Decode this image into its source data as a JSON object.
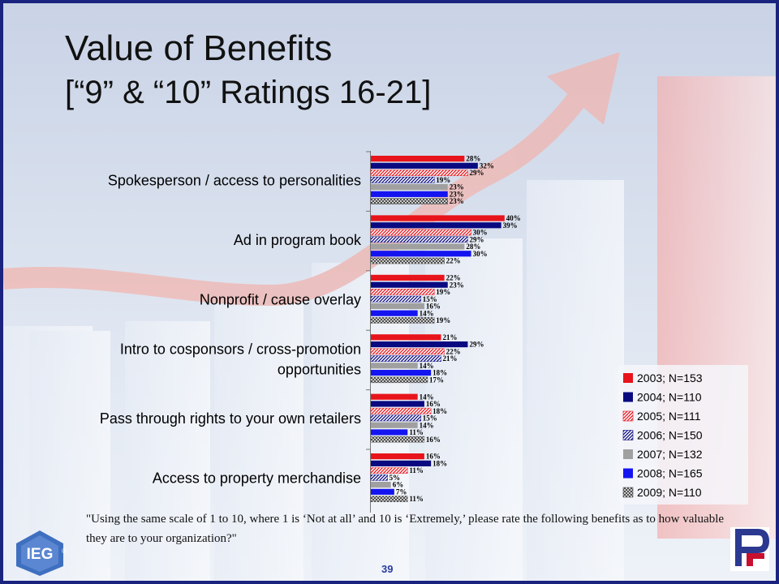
{
  "slide": {
    "title": "Value of Benefits",
    "subtitle": "[“9” & “10” Ratings 16-21]",
    "question": "\"Using the same scale of 1 to 10, where 1 is ‘Not at all’ and 10 is ‘Extremely,’ please rate the following benefits as to how valuable they are to your organization?\"",
    "page_number": "39",
    "logo_left_text": "IEG",
    "logo_left_mark": "®"
  },
  "chart_data": {
    "type": "bar",
    "orientation": "horizontal",
    "categories": [
      "Spokesperson / access to personalities",
      "Ad in program book",
      "Nonprofit / cause overlay",
      "Intro to cosponsors / cross-promotion opportunities",
      "Pass through rights to your own retailers",
      "Access to property merchandise"
    ],
    "category_lines": [
      [
        "Spokesperson / access to personalities"
      ],
      [
        "Ad in program book"
      ],
      [
        "Nonprofit / cause overlay"
      ],
      [
        "Intro to cosponsors / cross-promotion",
        "opportunities"
      ],
      [
        "Pass through rights to your own retailers"
      ],
      [
        "Access to property merchandise"
      ]
    ],
    "value_suffix": "%",
    "xlim": [
      0,
      45
    ],
    "legend_position": "right",
    "series": [
      {
        "name": "2003; N=153",
        "color": "#e8141b",
        "pattern": "solid",
        "values": [
          28,
          40,
          22,
          21,
          14,
          16
        ]
      },
      {
        "name": "2004; N=110",
        "color": "#0a0a80",
        "pattern": "solid",
        "values": [
          32,
          39,
          23,
          29,
          16,
          18
        ]
      },
      {
        "name": "2005; N=111",
        "color": "#e8141b",
        "pattern": "hatch-light",
        "values": [
          29,
          30,
          19,
          22,
          18,
          11
        ]
      },
      {
        "name": "2006; N=150",
        "color": "#0a0a80",
        "pattern": "hatch-dark",
        "values": [
          19,
          29,
          15,
          21,
          15,
          5
        ]
      },
      {
        "name": "2007; N=132",
        "color": "#a0a0a0",
        "pattern": "solid",
        "values": [
          23,
          28,
          16,
          14,
          14,
          6
        ]
      },
      {
        "name": "2008; N=165",
        "color": "#1414f0",
        "pattern": "solid",
        "values": [
          23,
          30,
          14,
          18,
          11,
          7
        ]
      },
      {
        "name": "2009; N=110",
        "color": "#505050",
        "pattern": "crosshatch",
        "values": [
          23,
          22,
          19,
          17,
          16,
          11
        ]
      }
    ]
  }
}
